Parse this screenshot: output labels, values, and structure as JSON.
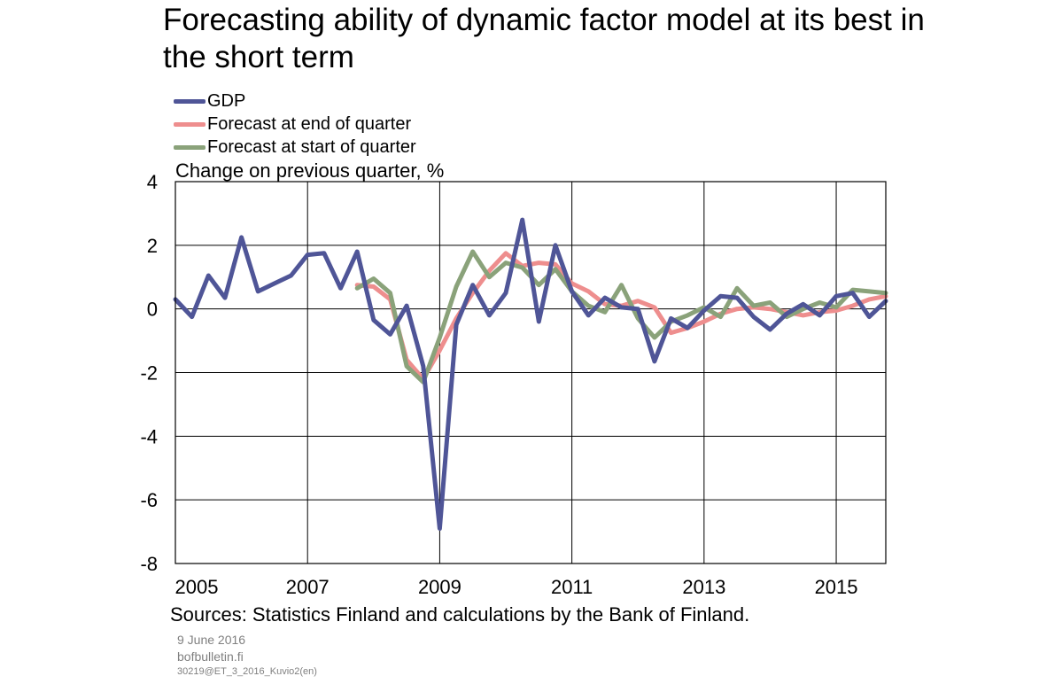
{
  "title": "Forecasting ability of dynamic factor model at its best in the short term",
  "unit_label": "Change on previous quarter, %",
  "sources": "Sources: Statistics Finland and calculations by the Bank of Finland.",
  "date": "9 June 2016",
  "site": "bofbulletin.fi",
  "code": "30219@ET_3_2016_Kuvio2(en)",
  "chart_data": {
    "type": "line",
    "ylim": [
      -8,
      4
    ],
    "yticks": [
      4,
      2,
      0,
      -2,
      -4,
      -6,
      -8
    ],
    "xlim": [
      2005,
      2015.75
    ],
    "xticks": [
      "2005",
      "2007",
      "2009",
      "2011",
      "2013",
      "2015"
    ],
    "grid": true,
    "legend_position": "top-left",
    "series": [
      {
        "name": "GDP",
        "color": "#4F5597",
        "x": [
          2005.0,
          2005.25,
          2005.5,
          2005.75,
          2006.0,
          2006.25,
          2006.5,
          2006.75,
          2007.0,
          2007.25,
          2007.5,
          2007.75,
          2008.0,
          2008.25,
          2008.5,
          2008.75,
          2009.0,
          2009.25,
          2009.5,
          2009.75,
          2010.0,
          2010.25,
          2010.5,
          2010.75,
          2011.0,
          2011.25,
          2011.5,
          2011.75,
          2012.0,
          2012.25,
          2012.5,
          2012.75,
          2013.0,
          2013.25,
          2013.5,
          2013.75,
          2014.0,
          2014.25,
          2014.5,
          2014.75,
          2015.0,
          2015.25,
          2015.5,
          2015.75
        ],
        "values": [
          0.3,
          -0.25,
          1.05,
          0.35,
          2.25,
          0.55,
          0.8,
          1.05,
          1.7,
          1.75,
          0.65,
          1.8,
          -0.35,
          -0.8,
          0.1,
          -1.8,
          -6.9,
          -0.5,
          0.75,
          -0.2,
          0.5,
          2.8,
          -0.4,
          2.0,
          0.55,
          -0.2,
          0.35,
          0.05,
          0.0,
          -1.65,
          -0.3,
          -0.6,
          -0.05,
          0.4,
          0.35,
          -0.25,
          -0.65,
          -0.15,
          0.15,
          -0.2,
          0.4,
          0.5,
          -0.25,
          0.25
        ]
      },
      {
        "name": "Forecast at end of quarter",
        "color": "#EE8E8E",
        "x": [
          2007.75,
          2008.0,
          2008.25,
          2008.5,
          2008.75,
          2009.0,
          2009.25,
          2009.5,
          2009.75,
          2010.0,
          2010.25,
          2010.5,
          2010.75,
          2011.0,
          2011.25,
          2011.5,
          2011.75,
          2012.0,
          2012.25,
          2012.5,
          2012.75,
          2013.0,
          2013.25,
          2013.5,
          2013.75,
          2014.0,
          2014.25,
          2014.5,
          2014.75,
          2015.0,
          2015.25,
          2015.5,
          2015.75
        ],
        "values": [
          0.75,
          0.7,
          0.3,
          -1.6,
          -2.2,
          -1.3,
          -0.3,
          0.5,
          1.2,
          1.75,
          1.35,
          1.45,
          1.4,
          0.8,
          0.55,
          0.15,
          0.1,
          0.25,
          0.05,
          -0.75,
          -0.6,
          -0.4,
          -0.15,
          0.0,
          0.05,
          0.0,
          -0.1,
          -0.2,
          -0.1,
          -0.05,
          0.1,
          0.3,
          0.4
        ]
      },
      {
        "name": "Forecast at start of quarter",
        "color": "#8AA27A",
        "x": [
          2007.75,
          2008.0,
          2008.25,
          2008.5,
          2008.75,
          2009.0,
          2009.25,
          2009.5,
          2009.75,
          2010.0,
          2010.25,
          2010.5,
          2010.75,
          2011.0,
          2011.25,
          2011.5,
          2011.75,
          2012.0,
          2012.25,
          2012.5,
          2012.75,
          2013.0,
          2013.25,
          2013.5,
          2013.75,
          2014.0,
          2014.25,
          2014.5,
          2014.75,
          2015.0,
          2015.25,
          2015.5,
          2015.75
        ],
        "values": [
          0.65,
          0.95,
          0.5,
          -1.8,
          -2.3,
          -0.9,
          0.7,
          1.8,
          1.0,
          1.45,
          1.3,
          0.75,
          1.25,
          0.55,
          0.1,
          -0.1,
          0.75,
          -0.3,
          -0.9,
          -0.4,
          -0.2,
          0.05,
          -0.25,
          0.65,
          0.1,
          0.2,
          -0.25,
          0.0,
          0.2,
          0.05,
          0.6,
          0.55,
          0.5
        ]
      }
    ]
  }
}
